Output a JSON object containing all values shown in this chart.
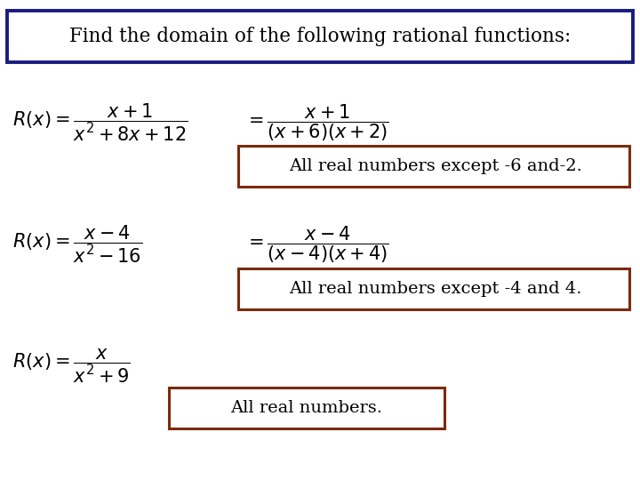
{
  "background_color": "#ffffff",
  "title_text": "Find the domain of the following rational functions:",
  "title_box_color": "#1a1a80",
  "answer_box_color": "#7b2a0e",
  "ans1": "All real numbers except -6 and-2.",
  "ans2": "All real numbers except -4 and 4.",
  "ans3": "All real numbers.",
  "fig_width": 7.2,
  "fig_height": 5.4,
  "dpi": 100,
  "title_fontsize": 15.5,
  "eq_fontsize": 15,
  "ans_fontsize": 14
}
